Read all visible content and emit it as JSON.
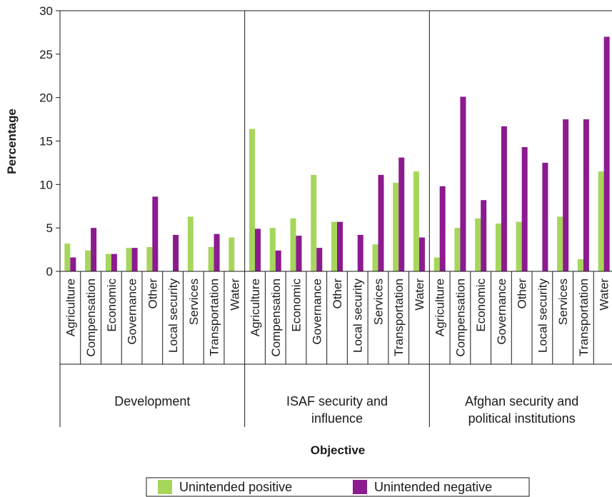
{
  "chart_data": {
    "type": "bar",
    "ylabel": "Percentage",
    "xlabel": "Objective",
    "ylim": [
      0,
      30
    ],
    "yticks": [
      0,
      5,
      10,
      15,
      20,
      25,
      30
    ],
    "grid": false,
    "legend_position": "bottom",
    "series": [
      {
        "name": "Unintended positive",
        "color": "#a6d65c"
      },
      {
        "name": "Unintended negative",
        "color": "#8b1b8f"
      }
    ],
    "groups": [
      {
        "label_lines": [
          "Development"
        ],
        "categories": [
          "Agriculture",
          "Compensation",
          "Economic",
          "Governance",
          "Other",
          "Local security",
          "Services",
          "Transportation",
          "Water"
        ],
        "positive": [
          3.2,
          2.4,
          2.0,
          2.7,
          2.8,
          0,
          6.3,
          2.8,
          3.9
        ],
        "negative": [
          1.6,
          5.0,
          2.0,
          2.7,
          8.6,
          4.2,
          0,
          4.3,
          0
        ]
      },
      {
        "label_lines": [
          "ISAF security and",
          "influence"
        ],
        "categories": [
          "Agriculture",
          "Compensation",
          "Economic",
          "Governance",
          "Other",
          "Local security",
          "Services",
          "Transportation",
          "Water"
        ],
        "positive": [
          16.4,
          5.0,
          6.1,
          11.1,
          5.7,
          0,
          3.1,
          10.2,
          11.5
        ],
        "negative": [
          4.9,
          2.4,
          4.1,
          2.7,
          5.7,
          4.2,
          11.1,
          13.1,
          3.9
        ]
      },
      {
        "label_lines": [
          "Afghan security and",
          "political institutions"
        ],
        "categories": [
          "Agriculture",
          "Compensation",
          "Economic",
          "Governance",
          "Other",
          "Local security",
          "Services",
          "Transportation",
          "Water"
        ],
        "positive": [
          1.6,
          5.0,
          6.1,
          5.5,
          5.7,
          0,
          6.3,
          1.4,
          11.5
        ],
        "negative": [
          9.8,
          20.1,
          8.2,
          16.7,
          14.3,
          12.5,
          17.5,
          17.5,
          27.0
        ]
      }
    ]
  }
}
